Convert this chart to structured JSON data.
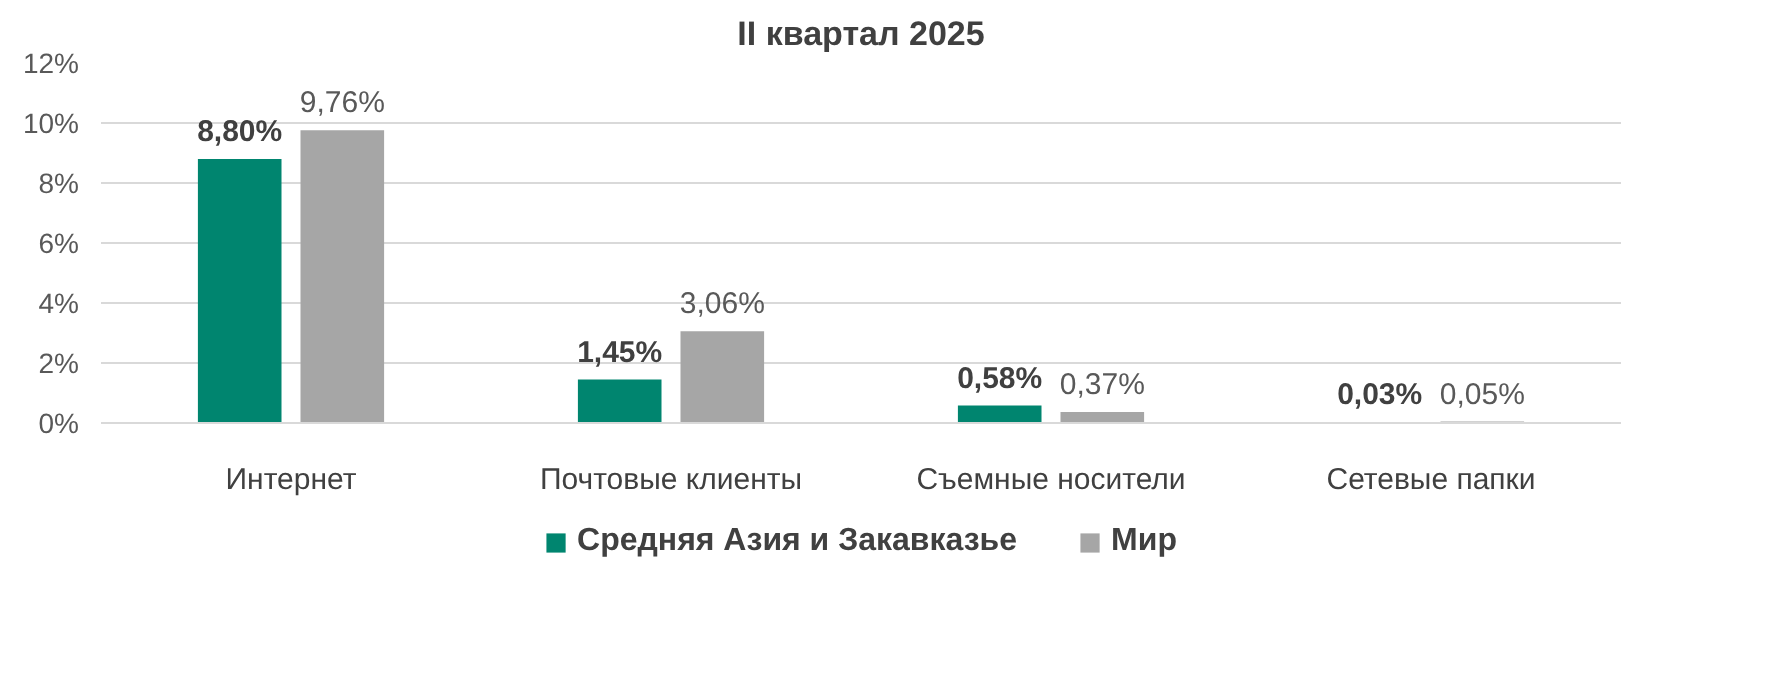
{
  "chart_data": {
    "type": "bar",
    "title": "II квартал 2025",
    "categories": [
      "Интернет",
      "Почтовые клиенты",
      "Съемные носители",
      "Сетевые папки"
    ],
    "series": [
      {
        "name": "Средняя Азия и Закавказье",
        "color": "#00856f",
        "values": [
          8.8,
          1.45,
          0.58,
          0.03
        ],
        "value_labels": [
          "8,80%",
          "1,45%",
          "0,58%",
          "0,03%"
        ]
      },
      {
        "name": "Мир",
        "color": "#a6a6a6",
        "values": [
          9.76,
          3.06,
          0.37,
          0.05
        ],
        "value_labels": [
          "9,76%",
          "3,06%",
          "0,37%",
          "0,05%"
        ]
      }
    ],
    "ylim": [
      0,
      12
    ],
    "yticks": [
      {
        "value": 0,
        "label": "0%"
      },
      {
        "value": 2,
        "label": "2%"
      },
      {
        "value": 4,
        "label": "4%"
      },
      {
        "value": 6,
        "label": "6%"
      },
      {
        "value": 8,
        "label": "8%"
      },
      {
        "value": 10,
        "label": "10%"
      },
      {
        "value": 12,
        "label": "12%"
      }
    ],
    "grid": "y",
    "legend": "bottom"
  }
}
